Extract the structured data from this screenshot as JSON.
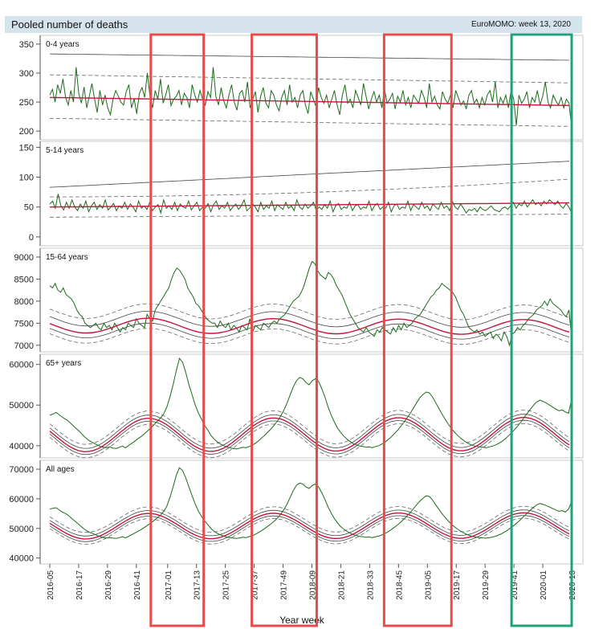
{
  "header": {
    "title": "Pooled number of deaths",
    "source": "EuroMOMO: week 13, 2020"
  },
  "chart_data": {
    "type": "line",
    "xlabel": "Year week",
    "x_tick_labels": [
      "2016-05",
      "2016-17",
      "2016-29",
      "2016-41",
      "2017-01",
      "2017-13",
      "2017-25",
      "2017-37",
      "2017-49",
      "2018-09",
      "2018-21",
      "2018-33",
      "2018-45",
      "2019-05",
      "2019-17",
      "2019-29",
      "2019-41",
      "2020-01",
      "2020-13"
    ],
    "x_range": [
      "2016-05",
      "2020-13"
    ],
    "highlights": [
      {
        "color": "#e84a4a",
        "from": "2016-47",
        "to": "2017-16"
      },
      {
        "color": "#e84a4a",
        "from": "2017-36",
        "to": "2018-11"
      },
      {
        "color": "#e84a4a",
        "from": "2018-39",
        "to": "2019-15"
      },
      {
        "color": "#22a07a",
        "from": "2019-40",
        "to": "2020-13"
      }
    ],
    "colors": {
      "observed": "#1b6b1b",
      "baseline": "#c4143c",
      "bands": "#666666"
    },
    "panels": [
      {
        "label": "0-4 years",
        "y_ticks": [
          200,
          250,
          300,
          350
        ],
        "ylim": [
          185,
          365
        ],
        "baseline": {
          "start": 258,
          "end": 244
        },
        "band_inner": [
          -36,
          39
        ],
        "band_outer_upper": {
          "start": 333,
          "end": 322
        },
        "observed": [
          262,
          272,
          250,
          280,
          265,
          290,
          258,
          245,
          270,
          250,
          310,
          265,
          248,
          276,
          240,
          260,
          282,
          255,
          232,
          270,
          245,
          262,
          240,
          228,
          255,
          270,
          260,
          250,
          245,
          268,
          280,
          240,
          255,
          230,
          265,
          275,
          258,
          300,
          262,
          240,
          270,
          255,
          290,
          248,
          262,
          280,
          244,
          255,
          260,
          270,
          245,
          265,
          258,
          240,
          280,
          262,
          250,
          270,
          255,
          245,
          268,
          258,
          310,
          260,
          245,
          275,
          252,
          240,
          262,
          280,
          250,
          236,
          265,
          270,
          250,
          285,
          240,
          255,
          268,
          232,
          260,
          275,
          248,
          240,
          270,
          262,
          245,
          235,
          258,
          270,
          245,
          280,
          250,
          258,
          240,
          262,
          270,
          245,
          230,
          268,
          255,
          242,
          275,
          258,
          248,
          262,
          240,
          255,
          270,
          245,
          228,
          262,
          280,
          248,
          255,
          240,
          270,
          258,
          245,
          282,
          260,
          238,
          255,
          268,
          250,
          262,
          240,
          272,
          248,
          255,
          265,
          238,
          260,
          250,
          270,
          245,
          258,
          240,
          262,
          255,
          248,
          270,
          258,
          240,
          282,
          250,
          260,
          245,
          238,
          268,
          255,
          248,
          262,
          240,
          270,
          258,
          245,
          252,
          238,
          262,
          270,
          248,
          255,
          240,
          258,
          245,
          262,
          270,
          250,
          285,
          240,
          258,
          248,
          262,
          240,
          270,
          255,
          210,
          262,
          248,
          255,
          268,
          240,
          258,
          250,
          270,
          245,
          260,
          285,
          250,
          240,
          262,
          252,
          245,
          258,
          240,
          255,
          248,
          205
        ]
      },
      {
        "label": "5-14 years",
        "y_ticks": [
          0,
          50,
          100,
          150
        ],
        "ylim": [
          -15,
          160
        ],
        "baseline": {
          "start": 50,
          "end": 57
        },
        "band_inner_lower": {
          "start": 33,
          "end": 38
        },
        "band_inner_upper": {
          "start": 67,
          "end": 97
        },
        "band_outer_upper": {
          "start": 83,
          "end": 127
        },
        "observed": [
          55,
          60,
          48,
          72,
          52,
          45,
          58,
          48,
          62,
          50,
          44,
          55,
          48,
          60,
          42,
          52,
          58,
          46,
          54,
          48,
          62,
          45,
          50,
          56,
          44,
          52,
          48,
          58,
          46,
          55,
          50,
          42,
          60,
          48,
          52,
          46,
          58,
          44,
          50,
          54,
          40,
          62,
          48,
          52,
          46,
          58,
          44,
          55,
          50,
          48,
          60,
          45,
          52,
          58,
          44,
          50,
          48,
          56,
          42,
          54,
          60,
          46,
          52,
          48,
          58,
          44,
          50,
          55,
          46,
          52,
          62,
          44,
          48,
          56,
          50,
          42,
          58,
          46,
          52,
          48,
          60,
          44,
          54,
          50,
          46,
          58,
          48,
          52,
          44,
          62,
          50,
          46,
          55,
          48,
          52,
          58,
          44,
          50,
          46,
          54,
          48,
          60,
          42,
          52,
          56,
          46,
          50,
          48,
          58,
          44,
          52,
          54,
          46,
          50,
          48,
          60,
          44,
          52,
          56,
          46,
          50,
          48,
          58,
          42,
          52,
          55,
          46,
          50,
          48,
          60,
          44,
          54,
          50,
          46,
          58,
          48,
          52,
          44,
          55,
          50,
          46,
          58,
          48,
          52,
          44,
          60,
          50,
          46,
          55,
          48,
          40,
          46,
          44,
          48,
          42,
          50,
          46,
          44,
          48,
          52,
          46,
          44,
          42,
          48,
          50,
          46,
          52,
          58,
          48,
          55,
          52,
          60,
          50,
          56,
          62,
          54,
          58,
          52,
          60,
          55,
          62,
          58,
          54,
          60,
          52,
          48,
          56,
          50,
          40
        ]
      },
      {
        "label": "15-64 years",
        "y_ticks": [
          7000,
          7500,
          8000,
          8500,
          9000
        ],
        "ylim": [
          6850,
          9200
        ],
        "baseline_mean": 7450,
        "baseline_amp": 170,
        "baseline_trend": -40,
        "band_inner": [
          -110,
          160
        ],
        "band_outer": [
          -230,
          330
        ],
        "observed": [
          8350,
          8300,
          8400,
          8250,
          8200,
          8300,
          8150,
          8100,
          8050,
          7950,
          7800,
          7700,
          7650,
          7500,
          7450,
          7400,
          7450,
          7500,
          7400,
          7350,
          7500,
          7400,
          7450,
          7350,
          7500,
          7400,
          7300,
          7400,
          7350,
          7500,
          7450,
          7400,
          7600,
          7500,
          7450,
          7400,
          7700,
          7600,
          7550,
          7800,
          7900,
          8000,
          8100,
          8200,
          8300,
          8500,
          8650,
          8750,
          8700,
          8600,
          8500,
          8300,
          8200,
          8100,
          7950,
          7900,
          7800,
          7700,
          7600,
          7550,
          7500,
          7500,
          7400,
          7550,
          7450,
          7400,
          7500,
          7350,
          7450,
          7400,
          7300,
          7450,
          7400,
          7350,
          7600,
          7300,
          7450,
          7400,
          7350,
          7500,
          7450,
          7400,
          7500,
          7550,
          7500,
          7600,
          7650,
          7700,
          7800,
          7900,
          8000,
          8050,
          8100,
          8200,
          8350,
          8550,
          8750,
          8900,
          8850,
          8700,
          8600,
          8550,
          8500,
          8650,
          8600,
          8500,
          8350,
          8250,
          8150,
          8000,
          7850,
          7700,
          7600,
          7500,
          7400,
          7350,
          7300,
          7400,
          7300,
          7250,
          7200,
          7350,
          7300,
          7400,
          7350,
          7300,
          7250,
          7400,
          7300,
          7450,
          7350,
          7500,
          7400,
          7450,
          7500,
          7600,
          7650,
          7700,
          7800,
          7900,
          8000,
          8100,
          8150,
          8250,
          8300,
          8400,
          8350,
          8300,
          8250,
          8200,
          8100,
          7950,
          7800,
          7700,
          7550,
          7400,
          7350,
          7300,
          7350,
          7250,
          7300,
          7200,
          7250,
          7300,
          7150,
          7250,
          7200,
          7100,
          7300,
          7200,
          7000,
          7250,
          7300,
          7400,
          7350,
          7450,
          7500,
          7600,
          7650,
          7700,
          7800,
          7850,
          7900,
          8000,
          7900,
          8050,
          7950,
          7900,
          7850,
          7800,
          7700,
          7650,
          7800,
          7150
        ]
      },
      {
        "label": "65+ years",
        "y_ticks": [
          40000,
          50000,
          60000
        ],
        "ylim": [
          37000,
          62500
        ],
        "baseline_mean": 42600,
        "baseline_amp": 4100,
        "baseline_trend": 300,
        "band_inner": [
          -700,
          800
        ],
        "band_outer": [
          -1500,
          1800
        ],
        "observed": [
          47500,
          47800,
          48200,
          47600,
          47000,
          46500,
          46000,
          45200,
          44500,
          43800,
          43000,
          42200,
          41500,
          41000,
          40600,
          40200,
          39800,
          39600,
          39500,
          39700,
          39400,
          39300,
          39600,
          39900,
          39500,
          40100,
          40600,
          41200,
          41800,
          42300,
          43000,
          43700,
          44400,
          45200,
          46000,
          46800,
          47800,
          49500,
          52000,
          55000,
          58500,
          61500,
          60500,
          58000,
          55000,
          52500,
          50000,
          48000,
          46500,
          45000,
          43800,
          42500,
          41600,
          40900,
          40400,
          40000,
          39700,
          39500,
          39300,
          39200,
          39400,
          39600,
          39500,
          39800,
          40100,
          40600,
          41200,
          41900,
          42600,
          43400,
          44200,
          45100,
          46100,
          47300,
          48700,
          50500,
          52500,
          54500,
          56000,
          56800,
          56500,
          55500,
          55000,
          56000,
          56500,
          55800,
          54000,
          52000,
          49500,
          47500,
          45800,
          44300,
          43200,
          42300,
          41600,
          41000,
          40500,
          40200,
          39900,
          39800,
          39600,
          39700,
          39500,
          39800,
          40000,
          40400,
          40900,
          41500,
          42200,
          43000,
          43800,
          44800,
          45800,
          46900,
          48000,
          49300,
          50600,
          51800,
          52600,
          53200,
          53000,
          52000,
          50600,
          49200,
          47800,
          46500,
          45300,
          44200,
          43300,
          42500,
          41800,
          41200,
          40700,
          40300,
          40000,
          39800,
          39700,
          39600,
          39500,
          39700,
          39900,
          40200,
          40600,
          41100,
          41700,
          42400,
          43200,
          44000,
          44900,
          45900,
          47000,
          48000,
          49000,
          50000,
          50800,
          51200,
          50900,
          50500,
          50000,
          49500,
          49000,
          48600,
          48800,
          48300,
          48000,
          51500
        ]
      },
      {
        "label": "All ages",
        "y_ticks": [
          40000,
          50000,
          60000,
          70000
        ],
        "ylim": [
          38000,
          73000
        ],
        "baseline_mean": 50700,
        "baseline_amp": 4300,
        "baseline_trend": 300,
        "band_inner": [
          -900,
          1000
        ],
        "band_outer": [
          -1800,
          2200
        ],
        "observed": [
          56500,
          56800,
          57000,
          56200,
          55500,
          55000,
          54300,
          53300,
          52400,
          51500,
          50600,
          49700,
          49000,
          48500,
          48100,
          47600,
          47200,
          46900,
          46800,
          46900,
          46700,
          46600,
          46900,
          47200,
          46800,
          47400,
          47900,
          48500,
          49100,
          49700,
          50400,
          51100,
          51900,
          52700,
          53600,
          54500,
          55700,
          57500,
          60500,
          64000,
          68000,
          70500,
          69500,
          67000,
          64000,
          61000,
          58200,
          55800,
          54000,
          52500,
          51200,
          49900,
          49000,
          48300,
          47800,
          47400,
          47100,
          46900,
          46700,
          46600,
          46800,
          47000,
          46900,
          47200,
          47500,
          48000,
          48600,
          49300,
          50000,
          50800,
          51600,
          52500,
          53500,
          54800,
          56300,
          58200,
          60500,
          62800,
          64600,
          65300,
          65000,
          64000,
          63500,
          64500,
          65000,
          64000,
          62000,
          59800,
          57200,
          55100,
          53300,
          51800,
          50600,
          49700,
          49000,
          48400,
          47900,
          47600,
          47300,
          47200,
          47000,
          47100,
          46900,
          47200,
          47400,
          47800,
          48300,
          48900,
          49600,
          50400,
          51200,
          52200,
          53200,
          54300,
          55400,
          56700,
          58000,
          59200,
          60200,
          61000,
          60800,
          59600,
          58000,
          56500,
          55000,
          53700,
          52500,
          51400,
          50500,
          49700,
          49000,
          48400,
          47900,
          47500,
          47200,
          47000,
          46900,
          46800,
          46700,
          46900,
          47100,
          47400,
          47800,
          48300,
          48900,
          49600,
          50400,
          51200,
          52100,
          53100,
          54200,
          55200,
          56200,
          57200,
          58000,
          58400,
          58100,
          57700,
          57200,
          56700,
          56200,
          55800,
          56000,
          55500,
          56500,
          59200
        ]
      }
    ]
  }
}
